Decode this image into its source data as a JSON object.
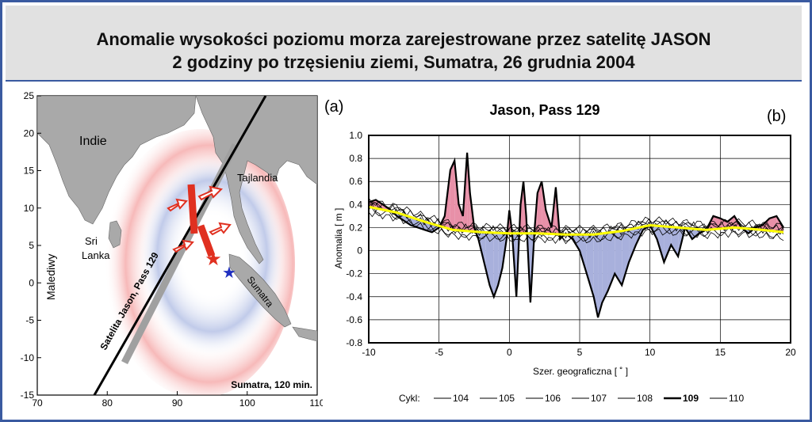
{
  "header": {
    "title_line1": "Anomalie wysokości  poziomu morza  zarejestrowane przez satelitę JASON",
    "title_line2": "2 godziny po trzęsieniu ziemi, Sumatra, 26 grudnia 2004"
  },
  "map_panel": {
    "panel_label": "(a)",
    "caption": "Sumatra, 120 min.",
    "labels": {
      "indie": "Indie",
      "sri_lanka_1": "Sri",
      "sri_lanka_2": "Lanka",
      "malediwy": "Malediwy",
      "tajlandia": "Tajlandia",
      "sumatra": "Sumatra",
      "track": "Satelita Jason, Pass 129"
    },
    "x_ticks": [
      "70",
      "80",
      "90",
      "100",
      "110"
    ],
    "y_ticks": [
      "25",
      "20",
      "15",
      "10",
      "5",
      "0",
      "-5",
      "-10",
      "-15"
    ],
    "colors": {
      "land": "#a9a9a9",
      "positive_anomaly": "#e06060",
      "negative_anomaly": "#6a82c4",
      "epicenter_red": "#e03020",
      "epicenter_blue": "#2030c0"
    }
  },
  "chart_data": {
    "type": "line",
    "panel_label": "(b)",
    "title": "Jason, Pass 129",
    "xlabel": "Szer. geograficzna  [ ˚ ]",
    "ylabel": "Anomalia  [ m ]",
    "xlim": [
      -10,
      20
    ],
    "ylim": [
      -0.8,
      1.0
    ],
    "x_ticks": [
      -10,
      -5,
      0,
      5,
      10,
      15,
      20
    ],
    "y_ticks": [
      1.0,
      0.8,
      0.6,
      0.4,
      0.2,
      0,
      -0.2,
      -0.4,
      -0.6,
      -0.8
    ],
    "grid": true,
    "legend_title": "Cykl:",
    "legend_position": "bottom",
    "series": [
      {
        "name": "104",
        "bold": false,
        "color": "#000000"
      },
      {
        "name": "105",
        "bold": false,
        "color": "#000000"
      },
      {
        "name": "106",
        "bold": false,
        "color": "#000000"
      },
      {
        "name": "107",
        "bold": false,
        "color": "#000000"
      },
      {
        "name": "108",
        "bold": false,
        "color": "#000000"
      },
      {
        "name": "109",
        "bold": true,
        "color": "#000000"
      },
      {
        "name": "110",
        "bold": false,
        "color": "#000000"
      }
    ],
    "cycle109": {
      "x": [
        -10,
        -9.5,
        -9,
        -8.5,
        -8,
        -7.5,
        -7,
        -6.5,
        -6,
        -5.5,
        -5,
        -4.6,
        -4.2,
        -3.9,
        -3.6,
        -3.3,
        -3.0,
        -2.8,
        -2.5,
        -2.2,
        -2.0,
        -1.7,
        -1.4,
        -1.1,
        -0.8,
        -0.5,
        -0.2,
        0.0,
        0.2,
        0.5,
        0.8,
        1.0,
        1.2,
        1.5,
        1.8,
        2.0,
        2.3,
        2.6,
        3.0,
        3.3,
        3.6,
        4.0,
        4.5,
        5.0,
        5.5,
        6.0,
        6.3,
        6.6,
        7.0,
        7.5,
        8.0,
        8.5,
        9.0,
        9.5,
        10.0,
        10.5,
        11.0,
        11.5,
        12.0,
        12.5,
        13.0,
        13.5,
        14.0,
        14.5,
        15.0,
        15.5,
        16.0,
        16.5,
        17.0,
        17.5,
        18.0,
        18.5,
        19.0,
        19.5
      ],
      "y": [
        0.42,
        0.44,
        0.4,
        0.36,
        0.3,
        0.26,
        0.22,
        0.2,
        0.18,
        0.16,
        0.2,
        0.3,
        0.7,
        0.78,
        0.4,
        0.3,
        0.85,
        0.5,
        0.2,
        0.1,
        0.0,
        -0.15,
        -0.3,
        -0.4,
        -0.3,
        -0.15,
        0.1,
        0.35,
        0.15,
        -0.4,
        0.4,
        0.6,
        0.3,
        -0.45,
        0.2,
        0.5,
        0.6,
        0.35,
        0.2,
        0.55,
        0.1,
        0.15,
        0.1,
        0.0,
        -0.2,
        -0.4,
        -0.58,
        -0.45,
        -0.35,
        -0.2,
        -0.3,
        -0.1,
        0.05,
        0.18,
        0.22,
        0.1,
        -0.1,
        0.05,
        -0.05,
        0.2,
        0.1,
        0.15,
        0.18,
        0.3,
        0.28,
        0.25,
        0.3,
        0.2,
        0.15,
        0.2,
        0.22,
        0.28,
        0.3,
        0.2
      ]
    },
    "mean_sea_surface": {
      "color": "#ffff00",
      "x": [
        -10,
        -8,
        -6,
        -4,
        -2,
        0,
        2,
        4,
        6,
        8,
        10,
        12,
        14,
        16,
        18,
        19.5
      ],
      "y": [
        0.38,
        0.33,
        0.25,
        0.18,
        0.16,
        0.15,
        0.15,
        0.14,
        0.14,
        0.17,
        0.22,
        0.2,
        0.18,
        0.2,
        0.18,
        0.16
      ]
    },
    "fill_colors": {
      "positive": "#e890a8",
      "negative": "#a8b0dc"
    }
  }
}
